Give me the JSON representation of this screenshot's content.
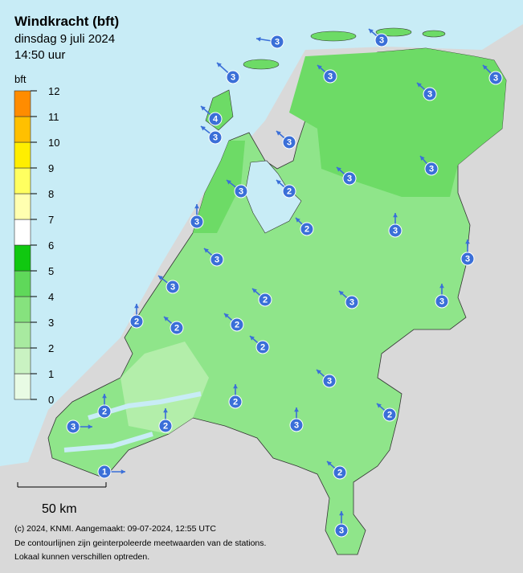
{
  "header": {
    "title": "Windkracht (bft)",
    "date": "dinsdag 9 juli 2024",
    "time": "14:50 uur"
  },
  "legend": {
    "unit": "bft",
    "ticks": [
      0,
      1,
      2,
      3,
      4,
      5,
      6,
      7,
      8,
      9,
      10,
      11,
      12
    ],
    "colors": [
      "#e8fbe4",
      "#c9f2c2",
      "#a8eaa0",
      "#86e27e",
      "#5fd85a",
      "#10c810",
      "#ffffff",
      "#ffffb0",
      "#ffff60",
      "#ffee00",
      "#ffc000",
      "#ff8c00"
    ]
  },
  "scale": {
    "label": "50 km"
  },
  "stations": [
    3,
    3,
    3,
    3,
    3,
    3,
    4,
    3,
    3,
    3,
    3,
    3,
    2,
    3,
    2,
    3,
    3,
    3,
    3,
    2,
    3,
    3,
    2,
    2,
    2,
    2,
    3,
    2,
    2,
    2,
    3,
    2,
    3,
    2,
    1,
    3
  ],
  "footer": [
    "(c) 2024, KNMI. Aangemaakt: 09-07-2024, 12:55 UTC",
    "De contourlijnen zijn geinterpoleerde meetwaarden van de stations.",
    "Lokaal kunnen verschillen optreden."
  ]
}
